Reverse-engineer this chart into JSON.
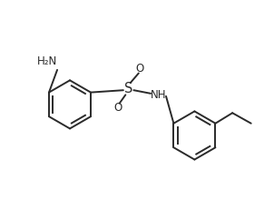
{
  "bg_color": "#ffffff",
  "line_color": "#2a2a2a",
  "line_width": 1.4,
  "font_size": 8.5,
  "figsize": [
    3.02,
    2.31
  ],
  "dpi": 100,
  "xlim": [
    0,
    10
  ],
  "ylim": [
    0,
    7.66
  ]
}
